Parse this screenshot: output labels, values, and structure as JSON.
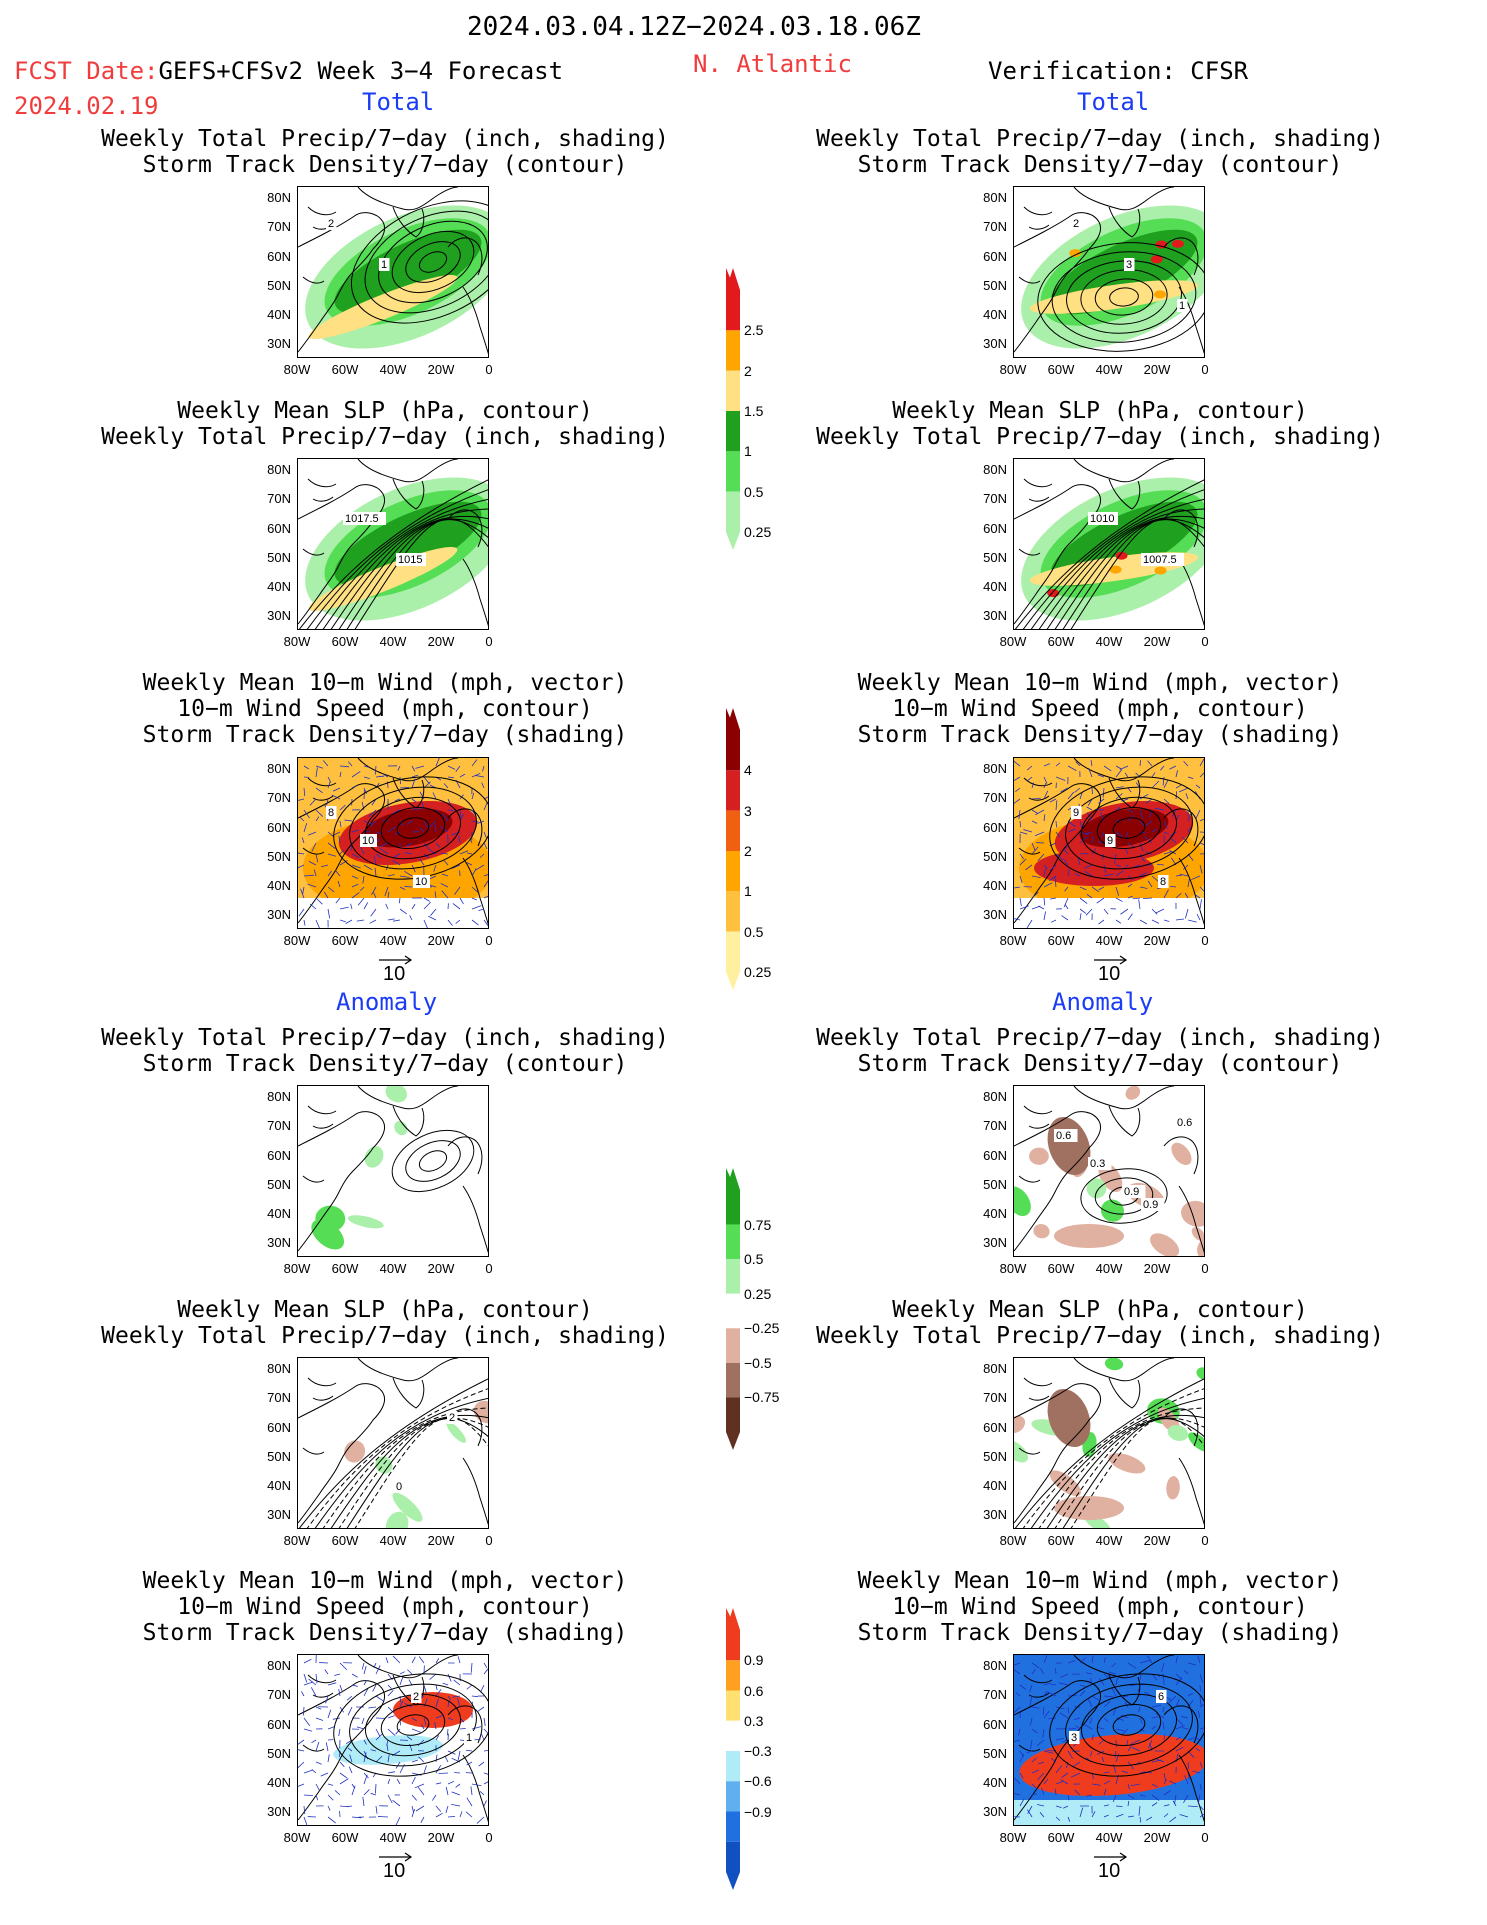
{
  "header": {
    "period": "2024.03.04.12Z−2024.03.18.06Z",
    "fcst_prefix": "FCST Date:",
    "fcst_model": "GEFS+CFSv2 Week 3−4 Forecast",
    "fcst_date": "2024.02.19",
    "region": "N. Atlantic",
    "verification": "Verification: CFSR"
  },
  "sections": {
    "total": "Total",
    "anomaly": "Anomaly"
  },
  "panel_titles": {
    "precip_track": [
      "Weekly Total Precip/7−day (inch, shading)",
      "Storm Track Density/7−day (contour)"
    ],
    "slp_precip": [
      "Weekly Mean SLP (hPa, contour)",
      "Weekly Total Precip/7−day (inch, shading)"
    ],
    "wind_track": [
      "Weekly Mean 10−m Wind (mph, vector)",
      "10−m Wind Speed (mph, contour)",
      "Storm Track Density/7−day (shading)"
    ]
  },
  "axes": {
    "lat_ticks": [
      "80N",
      "70N",
      "60N",
      "50N",
      "40N",
      "30N"
    ],
    "lon_ticks": [
      "80W",
      "60W",
      "40W",
      "20W",
      "0"
    ]
  },
  "vector_ref": "10",
  "colorbars": {
    "precip_total": {
      "labels": [
        "2.5",
        "2",
        "1.5",
        "1",
        "0.5",
        "0.25"
      ],
      "colors": [
        "#e31a1c",
        "#ffa500",
        "#ffe082",
        "#1fa01f",
        "#55dd55",
        "#aaf0aa"
      ]
    },
    "track_total": {
      "labels": [
        "4",
        "3",
        "2",
        "1",
        "0.5",
        "0.25"
      ],
      "colors": [
        "#8b0000",
        "#d42020",
        "#f06010",
        "#ffa500",
        "#ffc040",
        "#fff0a0"
      ]
    },
    "precip_anom": {
      "labels": [
        "0.75",
        "0.5",
        "0.25",
        "−0.25",
        "−0.5",
        "−0.75"
      ],
      "colors": [
        "#1fa01f",
        "#55dd55",
        "#aaf0aa",
        "#ffffff",
        "#e0b0a0",
        "#a07060",
        "#603020"
      ]
    },
    "track_anom": {
      "labels": [
        "0.9",
        "0.6",
        "0.3",
        "−0.3",
        "−0.6",
        "−0.9"
      ],
      "colors": [
        "#f03c1e",
        "#ffa020",
        "#ffe070",
        "#ffffff",
        "#b0ecf8",
        "#60b0f0",
        "#2070e0",
        "#1050c0"
      ]
    }
  },
  "contour_labels": {
    "fcst_track_total": [
      "2",
      "1"
    ],
    "obs_track_total": [
      "2",
      "3",
      "1"
    ],
    "fcst_slp_total": [
      "1017.5",
      "1015"
    ],
    "obs_slp_total": [
      "1010",
      "1007.5"
    ],
    "fcst_wind_total": [
      "10",
      "10",
      "8"
    ],
    "obs_wind_total": [
      "9",
      "8",
      "9"
    ],
    "obs_track_anom": [
      "0.9",
      "0.6",
      "0.3",
      "0.9",
      "0.6"
    ],
    "fcst_slp_anom": [
      "0",
      "2"
    ],
    "obs_wind_anom": [
      "6",
      "3"
    ],
    "fcst_wind_anom": [
      "2",
      "1"
    ]
  },
  "colors": {
    "red_text": "#f03c3c",
    "blue_text": "#1a3cf5"
  }
}
